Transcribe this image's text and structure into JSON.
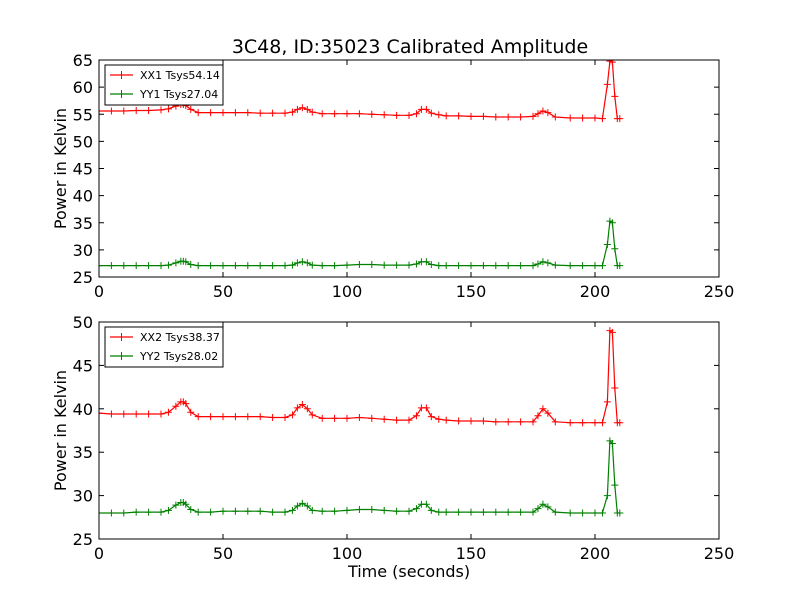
{
  "figure": {
    "title": "3C48, ID:35023 Calibrated Amplitude"
  },
  "chart_data": [
    {
      "type": "line",
      "title": "3C48, ID:35023 Calibrated Amplitude",
      "xlabel": "",
      "ylabel": "Power in Kelvin",
      "xlim": [
        0,
        250
      ],
      "ylim": [
        25,
        65
      ],
      "xticks": [
        0,
        50,
        100,
        150,
        200,
        250
      ],
      "yticks": [
        25,
        30,
        35,
        40,
        45,
        50,
        55,
        60,
        65
      ],
      "grid": false,
      "legend": "top-left",
      "series": [
        {
          "name": "XX1 Tsys54.14",
          "color": "#ff0000",
          "marker": "plus",
          "x": [
            0,
            5,
            10,
            15,
            20,
            25,
            28,
            31,
            33,
            34,
            35,
            37,
            40,
            45,
            50,
            55,
            60,
            65,
            70,
            75,
            78,
            80,
            82,
            84,
            86,
            90,
            95,
            100,
            105,
            110,
            115,
            120,
            125,
            128,
            130,
            132,
            134,
            137,
            140,
            145,
            150,
            155,
            160,
            165,
            170,
            175,
            177,
            179,
            181,
            184,
            190,
            195,
            200,
            203,
            205,
            206,
            207,
            208,
            209,
            210
          ],
          "y": [
            55.6,
            55.6,
            55.6,
            55.7,
            55.7,
            55.8,
            56.0,
            56.5,
            56.8,
            56.8,
            56.6,
            55.9,
            55.3,
            55.3,
            55.3,
            55.3,
            55.3,
            55.2,
            55.2,
            55.2,
            55.4,
            55.9,
            56.2,
            55.9,
            55.4,
            55.1,
            55.1,
            55.1,
            55.1,
            55.0,
            54.9,
            54.8,
            54.8,
            55.1,
            55.9,
            55.9,
            55.2,
            54.9,
            54.7,
            54.7,
            54.6,
            54.6,
            54.5,
            54.5,
            54.5,
            54.6,
            55.1,
            55.6,
            55.3,
            54.5,
            54.3,
            54.3,
            54.3,
            54.2,
            60.5,
            64.8,
            64.6,
            58.3,
            54.2,
            54.2
          ]
        },
        {
          "name": "YY1 Tsys27.04",
          "color": "#008000",
          "marker": "plus",
          "x": [
            0,
            5,
            10,
            15,
            20,
            25,
            28,
            31,
            33,
            34,
            35,
            37,
            40,
            45,
            50,
            55,
            60,
            65,
            70,
            75,
            78,
            80,
            82,
            84,
            86,
            90,
            95,
            100,
            105,
            110,
            115,
            120,
            125,
            128,
            130,
            132,
            134,
            137,
            140,
            145,
            150,
            155,
            160,
            165,
            170,
            175,
            177,
            179,
            181,
            184,
            190,
            195,
            200,
            203,
            205,
            206,
            207,
            208,
            209,
            210
          ],
          "y": [
            27.1,
            27.1,
            27.1,
            27.1,
            27.1,
            27.1,
            27.2,
            27.6,
            27.9,
            27.9,
            27.8,
            27.3,
            27.1,
            27.1,
            27.1,
            27.1,
            27.1,
            27.1,
            27.1,
            27.1,
            27.2,
            27.6,
            27.8,
            27.6,
            27.2,
            27.1,
            27.1,
            27.2,
            27.3,
            27.3,
            27.2,
            27.2,
            27.2,
            27.4,
            27.8,
            27.8,
            27.3,
            27.1,
            27.1,
            27.1,
            27.1,
            27.1,
            27.1,
            27.1,
            27.1,
            27.1,
            27.4,
            27.8,
            27.6,
            27.2,
            27.1,
            27.1,
            27.1,
            27.1,
            31.0,
            35.3,
            35.0,
            30.2,
            27.1,
            27.1
          ]
        }
      ]
    },
    {
      "type": "line",
      "title": "",
      "xlabel": "Time (seconds)",
      "ylabel": "Power in Kelvin",
      "xlim": [
        0,
        250
      ],
      "ylim": [
        25,
        50
      ],
      "xticks": [
        0,
        50,
        100,
        150,
        200,
        250
      ],
      "yticks": [
        25,
        30,
        35,
        40,
        45,
        50
      ],
      "grid": false,
      "legend": "top-left",
      "series": [
        {
          "name": "XX2 Tsys38.37",
          "color": "#ff0000",
          "marker": "plus",
          "x": [
            0,
            5,
            10,
            15,
            20,
            25,
            28,
            31,
            33,
            34,
            35,
            37,
            40,
            45,
            50,
            55,
            60,
            65,
            70,
            75,
            78,
            80,
            82,
            84,
            86,
            90,
            95,
            100,
            105,
            110,
            115,
            120,
            125,
            128,
            130,
            132,
            134,
            137,
            140,
            145,
            150,
            155,
            160,
            165,
            170,
            175,
            177,
            179,
            181,
            184,
            190,
            195,
            200,
            203,
            205,
            206,
            207,
            208,
            209,
            210
          ],
          "y": [
            39.5,
            39.4,
            39.4,
            39.4,
            39.4,
            39.4,
            39.6,
            40.3,
            40.8,
            40.8,
            40.6,
            39.6,
            39.1,
            39.1,
            39.1,
            39.1,
            39.1,
            39.1,
            39.0,
            39.0,
            39.3,
            40.1,
            40.5,
            40.0,
            39.3,
            38.9,
            38.9,
            38.9,
            39.0,
            38.9,
            38.8,
            38.7,
            38.7,
            39.2,
            40.1,
            40.1,
            39.1,
            38.8,
            38.7,
            38.6,
            38.6,
            38.6,
            38.5,
            38.5,
            38.5,
            38.5,
            39.2,
            40.0,
            39.5,
            38.5,
            38.4,
            38.4,
            38.4,
            38.4,
            40.8,
            49.0,
            48.8,
            42.4,
            38.4,
            38.4
          ]
        },
        {
          "name": "YY2 Tsys28.02",
          "color": "#008000",
          "marker": "plus",
          "x": [
            0,
            5,
            10,
            15,
            20,
            25,
            28,
            31,
            33,
            34,
            35,
            37,
            40,
            45,
            50,
            55,
            60,
            65,
            70,
            75,
            78,
            80,
            82,
            84,
            86,
            90,
            95,
            100,
            105,
            110,
            115,
            120,
            125,
            128,
            130,
            132,
            134,
            137,
            140,
            145,
            150,
            155,
            160,
            165,
            170,
            175,
            177,
            179,
            181,
            184,
            190,
            195,
            200,
            203,
            205,
            206,
            207,
            208,
            209,
            210
          ],
          "y": [
            28.0,
            28.0,
            28.0,
            28.1,
            28.1,
            28.1,
            28.3,
            28.9,
            29.2,
            29.2,
            29.0,
            28.4,
            28.1,
            28.1,
            28.2,
            28.2,
            28.2,
            28.2,
            28.1,
            28.1,
            28.3,
            28.8,
            29.1,
            28.8,
            28.3,
            28.2,
            28.2,
            28.3,
            28.4,
            28.4,
            28.3,
            28.2,
            28.2,
            28.5,
            29.0,
            29.0,
            28.3,
            28.1,
            28.1,
            28.1,
            28.1,
            28.1,
            28.1,
            28.1,
            28.1,
            28.1,
            28.5,
            29.0,
            28.7,
            28.1,
            28.0,
            28.0,
            28.0,
            28.0,
            30.0,
            36.3,
            36.0,
            31.2,
            28.0,
            28.0
          ]
        }
      ]
    }
  ]
}
